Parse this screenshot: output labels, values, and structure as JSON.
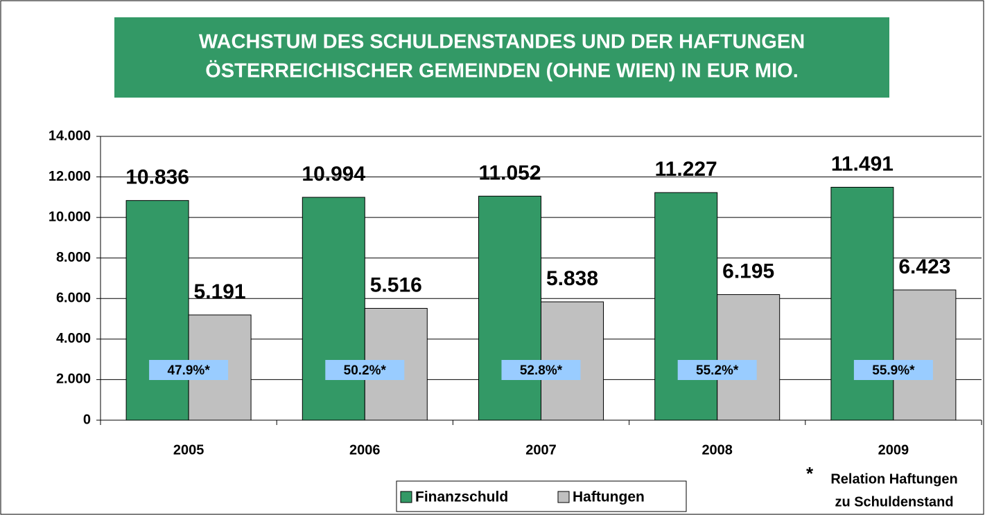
{
  "chart_data": {
    "type": "bar",
    "title": [
      "WACHSTUM DES SCHULDENSTANDES UND DER HAFTUNGEN",
      "ÖSTERREICHISCHER GEMEINDEN (OHNE WIEN) IN EUR MIO."
    ],
    "categories": [
      "2005",
      "2006",
      "2007",
      "2008",
      "2009"
    ],
    "series": [
      {
        "name": "Finanzschuld",
        "color": "#339966",
        "values": [
          10836,
          10994,
          11052,
          11227,
          11491
        ],
        "value_labels": [
          "10.836",
          "10.994",
          "11.052",
          "11.227",
          "11.491"
        ]
      },
      {
        "name": "Haftungen",
        "color": "#c0c0c0",
        "values": [
          5191,
          5516,
          5838,
          6195,
          6423
        ],
        "value_labels": [
          "5.191",
          "5.516",
          "5.838",
          "6.195",
          "6.423"
        ]
      }
    ],
    "ratio_labels": [
      "47.9%*",
      "50.2%*",
      "52.8%*",
      "55.2%*",
      "55.9%*"
    ],
    "ylim": [
      0,
      14000
    ],
    "yticks": [
      {
        "value": 0,
        "label": "0"
      },
      {
        "value": 2000,
        "label": "2.000"
      },
      {
        "value": 4000,
        "label": "4.000"
      },
      {
        "value": 6000,
        "label": "6.000"
      },
      {
        "value": 8000,
        "label": "8.000"
      },
      {
        "value": 10000,
        "label": "10.000"
      },
      {
        "value": 12000,
        "label": "12.000"
      },
      {
        "value": 14000,
        "label": "14.000"
      }
    ],
    "grid": true,
    "legend": "bottom",
    "footnote_marker": "*",
    "footnote": [
      "Relation Haftungen",
      "zu Schuldenstand"
    ]
  }
}
